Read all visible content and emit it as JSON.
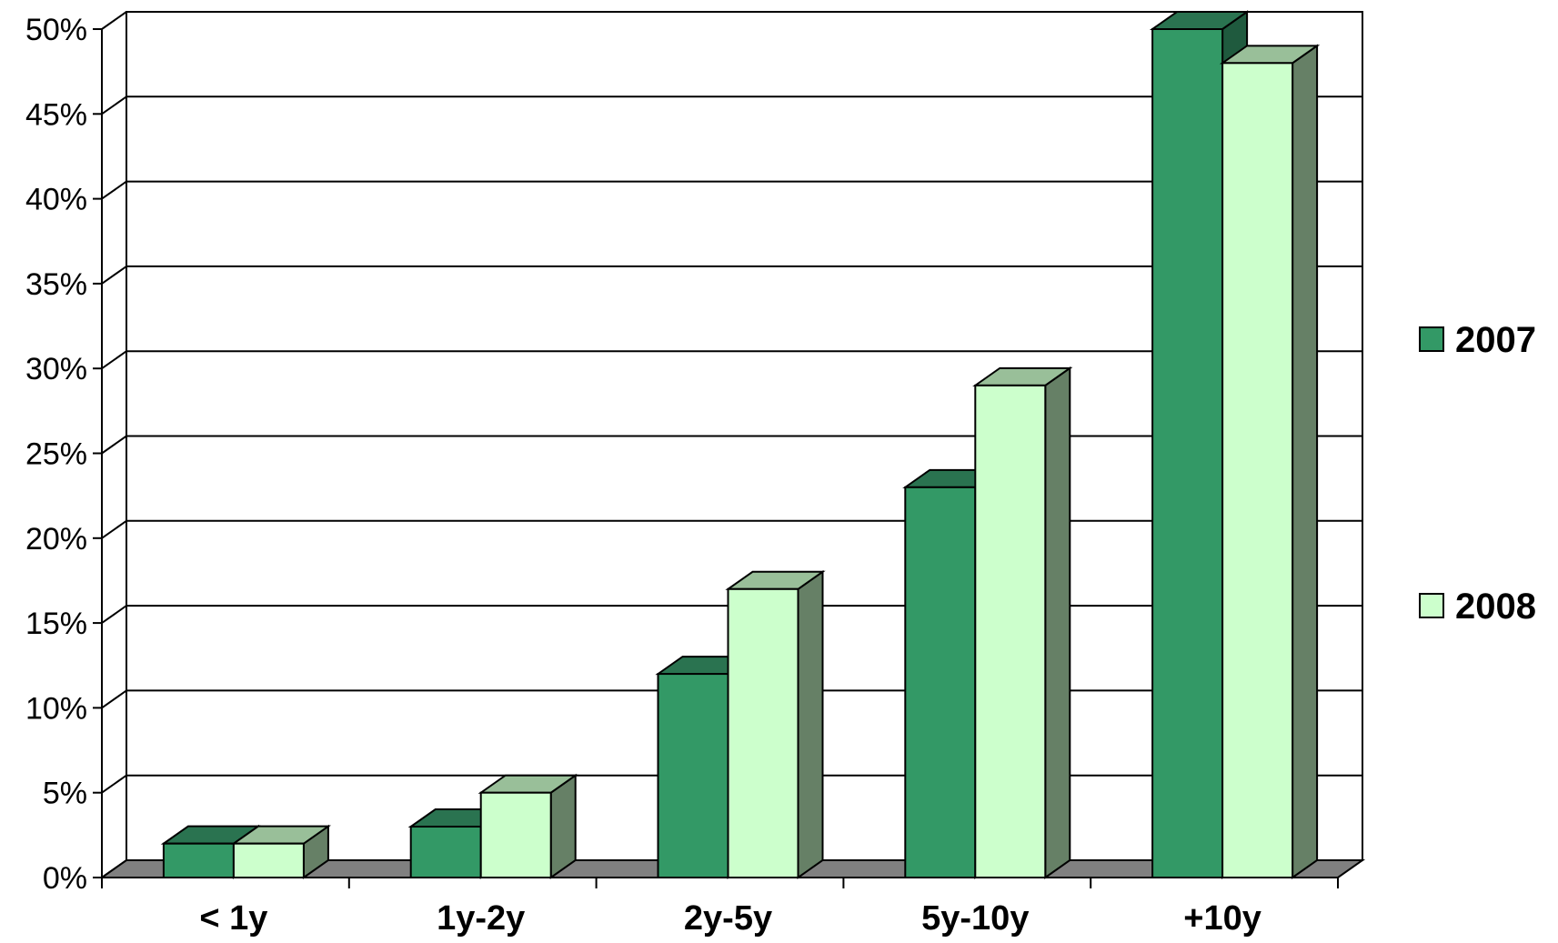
{
  "chart_data": {
    "type": "bar",
    "categories": [
      "< 1y",
      "1y-2y",
      "2y-5y",
      "5y-10y",
      "+10y"
    ],
    "series": [
      {
        "name": "2007",
        "values": [
          2,
          3,
          12,
          23,
          50
        ]
      },
      {
        "name": "2008",
        "values": [
          2,
          5,
          17,
          29,
          48
        ]
      }
    ],
    "ylim": [
      0,
      50
    ],
    "y_ticks": [
      0,
      5,
      10,
      15,
      20,
      25,
      30,
      35,
      40,
      45,
      50
    ],
    "y_tick_format": "%",
    "y_tick_labels": [
      "0%",
      "5%",
      "10%",
      "15%",
      "20%",
      "25%",
      "30%",
      "35%",
      "40%",
      "45%",
      "50%"
    ],
    "grid": true,
    "legend_position": "right",
    "three_d": true,
    "colors": {
      "2007": {
        "front": "#339966",
        "top": "#2a7350",
        "side": "#1f5a3e"
      },
      "2008": {
        "front": "#ccffcc",
        "top": "#99bf99",
        "side": "#668066"
      },
      "floor": "#808080"
    }
  }
}
